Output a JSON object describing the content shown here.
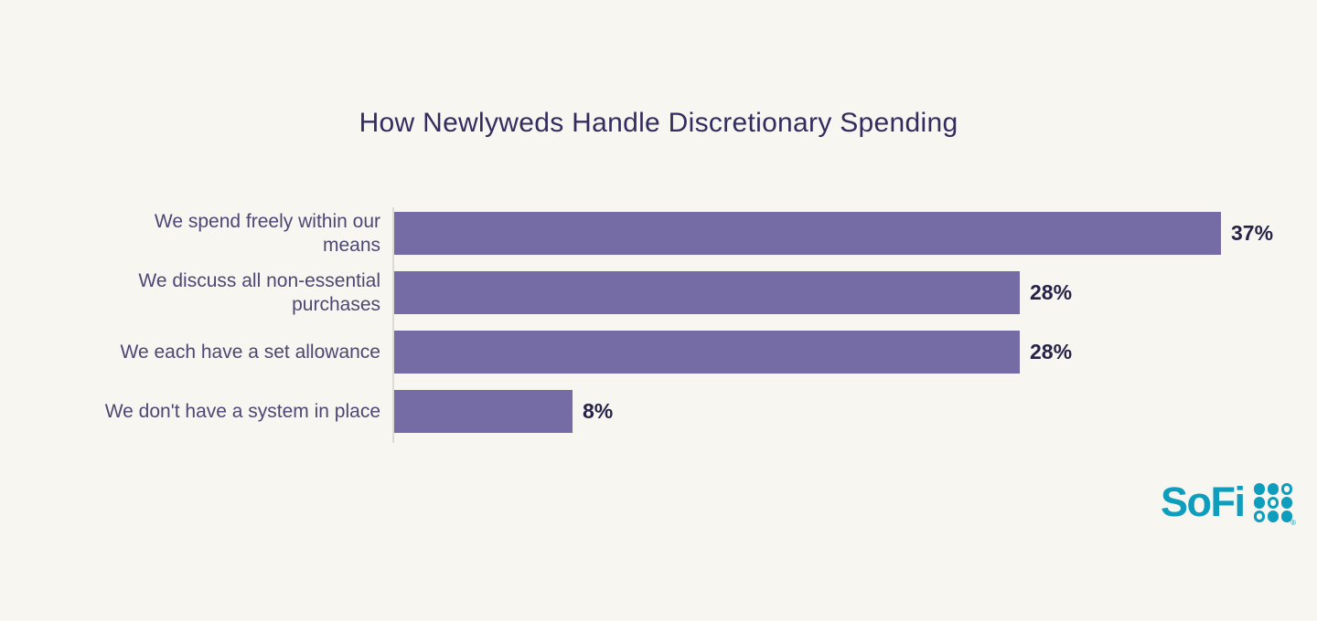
{
  "title": "How Newlyweds Handle Discretionary Spending",
  "colors": {
    "background": "#F8F6F1",
    "bar": "#756CA6",
    "title_text": "#332D5F",
    "category_text": "#4D4773",
    "value_text": "#272247",
    "axis_line": "#DEDBD4",
    "brand_teal": "#0F9DBD"
  },
  "chart_data": {
    "type": "bar",
    "orientation": "horizontal",
    "title": "How Newlyweds Handle Discretionary Spending",
    "categories": [
      "We spend freely within our means",
      "We discuss all non-essential purchases",
      "We each have a set allowance",
      "We don't have a system in place"
    ],
    "label_lines": [
      [
        "We spend freely within our",
        "means"
      ],
      [
        "We discuss all non-essential",
        "purchases"
      ],
      [
        "We each have a set allowance"
      ],
      [
        "We don't have a system in place"
      ]
    ],
    "values": [
      37,
      28,
      28,
      8
    ],
    "value_labels": [
      "37%",
      "28%",
      "28%",
      "8%"
    ],
    "unit": "%",
    "xlim": [
      0,
      40
    ],
    "grid": false,
    "legend": false
  },
  "logo": {
    "brand": "SoFi",
    "trademark": "®",
    "dot_pattern": [
      "filled",
      "filled",
      "hollow",
      "filled",
      "hollow",
      "filled",
      "hollow",
      "filled",
      "filled"
    ]
  }
}
